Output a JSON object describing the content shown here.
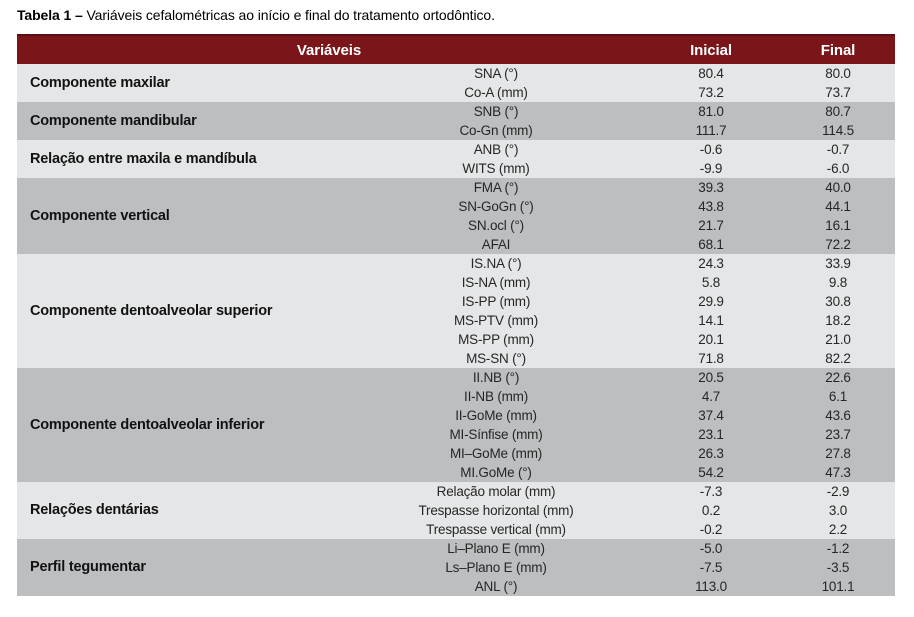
{
  "title": {
    "label": "Tabela 1 –",
    "caption": " Variáveis cefalométricas ao início e final do tratamento ortodôntico."
  },
  "colors": {
    "header_bg": "#7a151a",
    "header_border": "#5c0f13",
    "row_light": "#e5e6e7",
    "row_dark": "#bcbec0",
    "header_text": "#ffffff",
    "body_text": "#262626"
  },
  "table": {
    "headers": {
      "variables": "Variáveis",
      "initial": "Inicial",
      "final": "Final"
    },
    "groups": [
      {
        "name": "Componente maxilar",
        "shade": "light",
        "rows": [
          {
            "variable": "SNA (°)",
            "initial": "80.4",
            "final": "80.0"
          },
          {
            "variable": "Co-A (mm)",
            "initial": "73.2",
            "final": "73.7"
          }
        ]
      },
      {
        "name": "Componente mandibular",
        "shade": "dark",
        "rows": [
          {
            "variable": "SNB (°)",
            "initial": "81.0",
            "final": "80.7"
          },
          {
            "variable": "Co-Gn (mm)",
            "initial": "111.7",
            "final": "114.5"
          }
        ]
      },
      {
        "name": "Relação entre maxila e mandíbula",
        "shade": "light",
        "rows": [
          {
            "variable": "ANB (°)",
            "initial": "-0.6",
            "final": "-0.7"
          },
          {
            "variable": "WITS (mm)",
            "initial": "-9.9",
            "final": "-6.0"
          }
        ]
      },
      {
        "name": "Componente vertical",
        "shade": "dark",
        "rows": [
          {
            "variable": "FMA (°)",
            "initial": "39.3",
            "final": "40.0"
          },
          {
            "variable": "SN-GoGn (°)",
            "initial": "43.8",
            "final": "44.1"
          },
          {
            "variable": "SN.ocl (°)",
            "initial": "21.7",
            "final": "16.1"
          },
          {
            "variable": "AFAI",
            "initial": "68.1",
            "final": "72.2"
          }
        ]
      },
      {
        "name": "Componente dentoalveolar superior",
        "shade": "light",
        "rows": [
          {
            "variable": "IS.NA (°)",
            "initial": "24.3",
            "final": "33.9"
          },
          {
            "variable": "IS-NA (mm)",
            "initial": "5.8",
            "final": "9.8"
          },
          {
            "variable": "IS-PP (mm)",
            "initial": "29.9",
            "final": "30.8"
          },
          {
            "variable": "MS-PTV (mm)",
            "initial": "14.1",
            "final": "18.2"
          },
          {
            "variable": "MS-PP (mm)",
            "initial": "20.1",
            "final": "21.0"
          },
          {
            "variable": "MS-SN (°)",
            "initial": "71.8",
            "final": "82.2"
          }
        ]
      },
      {
        "name": "Componente dentoalveolar inferior",
        "shade": "dark",
        "rows": [
          {
            "variable": "II.NB (°)",
            "initial": "20.5",
            "final": "22.6"
          },
          {
            "variable": "II-NB (mm)",
            "initial": "4.7",
            "final": "6.1"
          },
          {
            "variable": "II-GoMe (mm)",
            "initial": "37.4",
            "final": "43.6"
          },
          {
            "variable": "MI-Sínfise (mm)",
            "initial": "23.1",
            "final": "23.7"
          },
          {
            "variable": "MI–GoMe (mm)",
            "initial": "26.3",
            "final": "27.8"
          },
          {
            "variable": "MI.GoMe (°)",
            "initial": "54.2",
            "final": "47.3"
          }
        ]
      },
      {
        "name": "Relações dentárias",
        "shade": "light",
        "rows": [
          {
            "variable": "Relação molar (mm)",
            "initial": "-7.3",
            "final": "-2.9"
          },
          {
            "variable": "Trespasse horizontal (mm)",
            "initial": "0.2",
            "final": "3.0"
          },
          {
            "variable": "Trespasse vertical (mm)",
            "initial": "-0.2",
            "final": "2.2"
          }
        ]
      },
      {
        "name": "Perfil tegumentar",
        "shade": "dark",
        "rows": [
          {
            "variable": "Li–Plano E (mm)",
            "initial": "-5.0",
            "final": "-1.2"
          },
          {
            "variable": "Ls–Plano E (mm)",
            "initial": "-7.5",
            "final": "-3.5"
          },
          {
            "variable": "ANL (°)",
            "initial": "113.0",
            "final": "101.1"
          }
        ]
      }
    ]
  }
}
